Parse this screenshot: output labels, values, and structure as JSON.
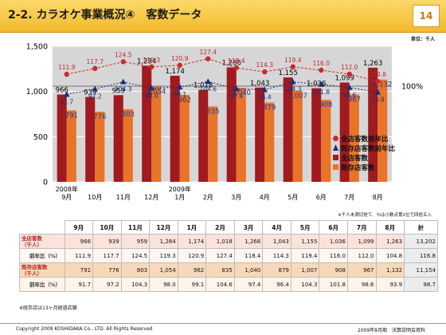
{
  "header": {
    "title": "2-2. カラオケ事業概況④　客数データ",
    "page": "14"
  },
  "unit_label": "単位：千人",
  "notes": {
    "rounding": "※千人未満切捨て、％は小数点第2位で四捨五入",
    "existing": "※既存店は13ヶ月経過店舗"
  },
  "footer": {
    "copyright": "Copyright 2009 KOSHIDAKA Co., LTD. All Rights Reserved",
    "presentation": "2009年8月期　決算説明会資料"
  },
  "colors": {
    "all": "#a01a20",
    "existing": "#e8742a",
    "all_line": "#cc2a2a",
    "existing_line": "#1a2f7a",
    "plot_bg": "#d6d6d6"
  },
  "chart_data": {
    "type": "bar",
    "categories": [
      "9月",
      "10月",
      "11月",
      "12月",
      "1月",
      "2月",
      "3月",
      "4月",
      "5月",
      "6月",
      "7月",
      "8月"
    ],
    "year_labels": [
      "2008年",
      "2009年"
    ],
    "series": [
      {
        "name": "全店客数",
        "values": [
          966,
          939,
          959,
          1284,
          1174,
          1018,
          1266,
          1043,
          1155,
          1036,
          1099,
          1263
        ]
      },
      {
        "name": "既存店客数",
        "values": [
          791,
          776,
          803,
          1054,
          962,
          835,
          1040,
          879,
          1007,
          908,
          967,
          1132
        ]
      }
    ],
    "lines": [
      {
        "name": "全店客数前年比",
        "values": [
          111.9,
          117.7,
          124.5,
          119.3,
          120.9,
          127.4,
          118.4,
          114.3,
          119.4,
          116.0,
          112.0,
          104.8
        ]
      },
      {
        "name": "既存店客数前年比",
        "values": [
          91.7,
          97.2,
          104.3,
          98.0,
          99.1,
          104.6,
          97.4,
          96.4,
          104.3,
          101.8,
          98.6,
          93.9
        ]
      }
    ],
    "ylim": [
      0,
      1500
    ],
    "yticks": [
      "0",
      "500",
      "1,000",
      "1,500"
    ],
    "ref_label": "100%",
    "bar_labels_all": [
      "966",
      "939",
      "959",
      "1,284",
      "1,174",
      "1,018",
      "1,266",
      "1,043",
      "1,155",
      "1,036",
      "1,099",
      "1,263"
    ],
    "bar_labels_exist": [
      "791",
      "776",
      "803",
      "1,054",
      "962",
      "835",
      "1,040",
      "879",
      "1,007",
      "908",
      "967",
      "1,132"
    ],
    "line_labels_all": [
      "111.9",
      "117.7",
      "124.5",
      "119.3",
      "120.9",
      "127.4",
      "118.4",
      "114.3",
      "119.4",
      "116.0",
      "112.0",
      "104.8"
    ],
    "line_labels_exist": [
      "91.7",
      "97.2",
      "104.3",
      "98.0",
      "99.1",
      "104.6",
      "97.4",
      "96.4",
      "104.3",
      "101.8",
      "98.6",
      "93.9"
    ],
    "grid": true,
    "legend_position": "right"
  },
  "table": {
    "headers": [
      "9月",
      "10月",
      "11月",
      "12月",
      "1月",
      "2月",
      "3月",
      "4月",
      "5月",
      "6月",
      "7月",
      "8月",
      "計"
    ],
    "rows": [
      {
        "label": [
          "全店客数",
          "（千人）"
        ],
        "values": [
          "966",
          "939",
          "959",
          "1,284",
          "1,174",
          "1,018",
          "1,266",
          "1,043",
          "1,155",
          "1,036",
          "1,099",
          "1,263",
          "13,202"
        ]
      },
      {
        "label": [
          "前年比（%）"
        ],
        "values": [
          "111.9",
          "117.7",
          "124.5",
          "119.3",
          "120.9",
          "127.4",
          "118.4",
          "114.3",
          "119.4",
          "116.0",
          "112.0",
          "104.8",
          "116.8"
        ]
      },
      {
        "label": [
          "既存店客数",
          "（千人）"
        ],
        "values": [
          "791",
          "776",
          "803",
          "1,054",
          "962",
          "835",
          "1,040",
          "879",
          "1,007",
          "908",
          "967",
          "1,132",
          "11,154"
        ]
      },
      {
        "label": [
          "前年比（%）"
        ],
        "values": [
          "91.7",
          "97.2",
          "104.3",
          "98.0",
          "99.1",
          "104.6",
          "97.4",
          "96.4",
          "104.3",
          "101.8",
          "98.6",
          "93.9",
          "98.7"
        ]
      }
    ]
  }
}
